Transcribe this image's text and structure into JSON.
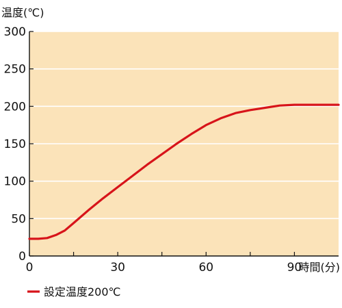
{
  "chart_data": {
    "type": "line",
    "title": "",
    "ylabel": "温度(℃)",
    "xlabel": "時間(分)",
    "xlim": [
      0,
      105
    ],
    "ylim": [
      0,
      300
    ],
    "x_ticks": [
      0,
      30,
      60,
      90
    ],
    "x_ticks_minor": [
      15,
      45,
      75
    ],
    "y_ticks": [
      0,
      50,
      100,
      150,
      200,
      250,
      300
    ],
    "grid": true,
    "background_color": "#fbe3b9",
    "grid_color": "#ffffff",
    "legend_position": "bottom-left",
    "series": [
      {
        "name": "設定温度200℃",
        "color": "#d7141a",
        "x": [
          0,
          3,
          6,
          9,
          12,
          15,
          20,
          25,
          30,
          35,
          40,
          45,
          50,
          55,
          60,
          65,
          70,
          75,
          80,
          85,
          90,
          95,
          100,
          105
        ],
        "y": [
          23,
          23,
          24,
          28,
          34,
          44,
          61,
          77,
          92,
          107,
          122,
          136,
          150,
          163,
          175,
          184,
          191,
          195,
          198,
          201,
          202,
          202,
          202,
          202
        ]
      }
    ]
  }
}
